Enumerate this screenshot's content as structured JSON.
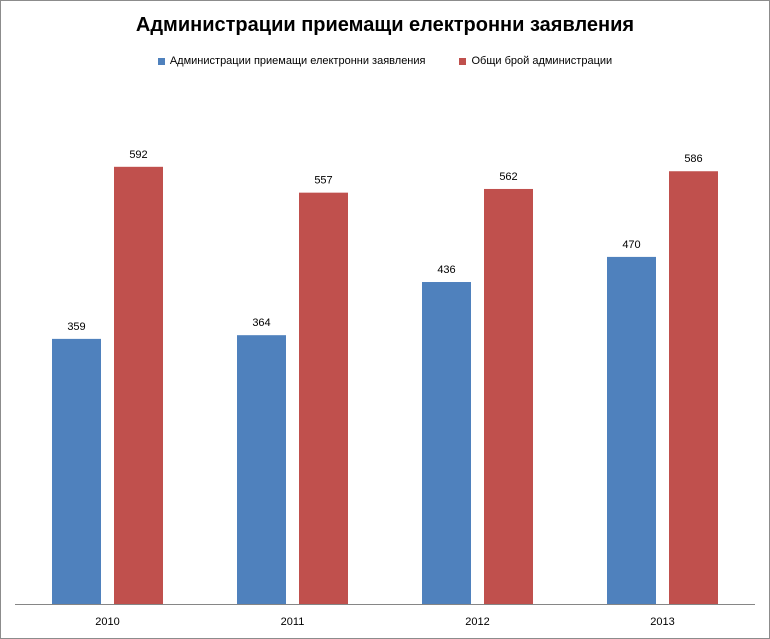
{
  "chart_data": {
    "type": "bar",
    "title": "Администрации приемащи електронни заявления",
    "categories": [
      "2010",
      "2011",
      "2012",
      "2013"
    ],
    "series": [
      {
        "name": "Администрации приемащи електронни заявления",
        "color": "#4f81bd",
        "values": [
          359,
          364,
          436,
          470
        ]
      },
      {
        "name": "Общи брой администрации",
        "color": "#c0504d",
        "values": [
          592,
          557,
          562,
          586
        ]
      }
    ],
    "xlabel": "",
    "ylabel": "",
    "ylim": [
      0,
      650
    ],
    "grid": false,
    "legend_position": "top"
  }
}
